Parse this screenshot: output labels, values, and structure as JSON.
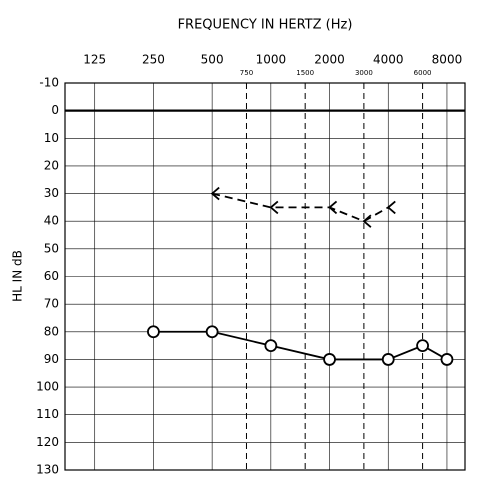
{
  "chart_data": {
    "type": "line",
    "title": "FREQUENCY IN HERTZ (Hz)",
    "y_label": "HL IN dB",
    "x_scale": "log",
    "xlim": [
      88,
      9900
    ],
    "xticks": [
      125,
      250,
      500,
      1000,
      2000,
      4000,
      8000
    ],
    "xticks_interoctave": [
      750,
      1500,
      3000,
      6000
    ],
    "ylim": [
      -10,
      130
    ],
    "yticks": [
      -10,
      0,
      10,
      20,
      30,
      40,
      50,
      60,
      70,
      80,
      90,
      100,
      110,
      120,
      130
    ],
    "y_inverted": true,
    "grid": true,
    "series": [
      {
        "color": "#000000",
        "marker": "circle",
        "dash": "none",
        "x": [
          250,
          500,
          1000,
          2000,
          4000,
          6000,
          8000
        ],
        "values": [
          80,
          80,
          85,
          90,
          90,
          85,
          90
        ]
      },
      {
        "color": "#000000",
        "marker": "less-than",
        "dash": "8,5",
        "x": [
          500,
          1000,
          2000,
          3000,
          4000
        ],
        "values": [
          30,
          35,
          35,
          40,
          35
        ]
      }
    ]
  }
}
